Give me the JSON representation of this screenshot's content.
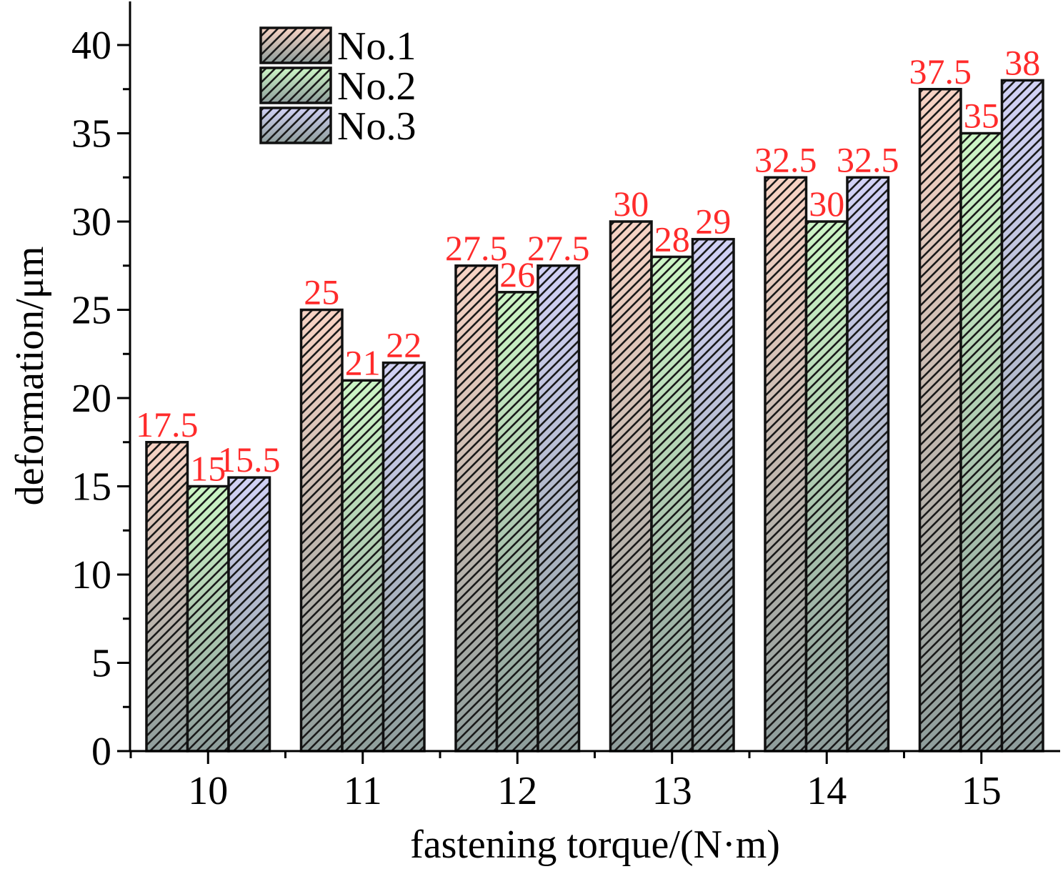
{
  "chart_data": {
    "type": "bar",
    "xlabel": "fastening torque/(N·m)",
    "ylabel": "deformation/μm",
    "categories": [
      "10",
      "11",
      "12",
      "13",
      "14",
      "15"
    ],
    "ylim": [
      0,
      42
    ],
    "yticks": [
      "0",
      "5",
      "10",
      "15",
      "20",
      "25",
      "30",
      "35",
      "40"
    ],
    "series": [
      {
        "name": "No.1",
        "values": [
          17.5,
          25,
          27.5,
          30,
          32.5,
          37.5
        ],
        "labels": [
          "17.5",
          "25",
          "27.5",
          "30",
          "32.5",
          "37.5"
        ],
        "color": "#f8d3c4"
      },
      {
        "name": "No.2",
        "values": [
          15,
          21,
          26,
          28,
          30,
          35
        ],
        "labels": [
          "15",
          "21",
          "26",
          "28",
          "30",
          "35"
        ],
        "color": "#cdf6c6"
      },
      {
        "name": "No.3",
        "values": [
          15.5,
          22,
          27.5,
          29,
          32.5,
          38
        ],
        "labels": [
          "15.5",
          "22",
          "27.5",
          "29",
          "32.5",
          "38"
        ],
        "color": "#d2d2f6"
      }
    ],
    "bottom_color": "#8f9e9c",
    "hatch": "diagonal",
    "data_label_color": "#ff2b2b",
    "legend_position": "top-left",
    "grid": false
  }
}
